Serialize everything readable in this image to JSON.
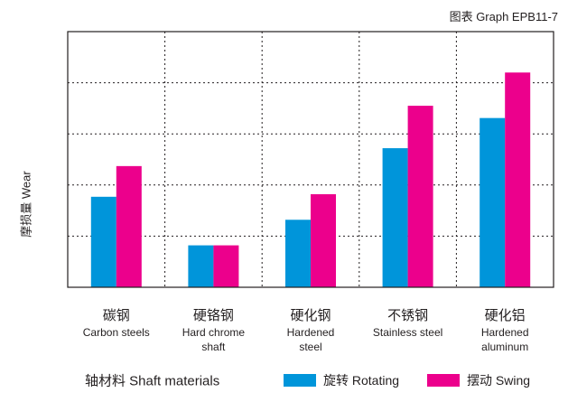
{
  "chart_data": {
    "type": "bar",
    "title": "图表 Graph EPB11-7",
    "ylabel": "摩损量 Wear",
    "xlabel": "轴材料 Shaft materials",
    "categories": [
      {
        "zh": "碳钢",
        "en": [
          "Carbon steels"
        ]
      },
      {
        "zh": "硬铬钢",
        "en": [
          "Hard chrome",
          "shaft"
        ]
      },
      {
        "zh": "硬化钢",
        "en": [
          "Hardened",
          "steel"
        ]
      },
      {
        "zh": "不锈钢",
        "en": [
          "Stainless steel"
        ]
      },
      {
        "zh": "硬化铝",
        "en": [
          "Hardened",
          "aluminum"
        ]
      }
    ],
    "series": [
      {
        "name": "旋转 Rotating",
        "color": "#0095da",
        "values": [
          1.77,
          0.82,
          1.32,
          2.72,
          3.31
        ]
      },
      {
        "name": "摆动 Swing",
        "color": "#ec008c",
        "values": [
          2.37,
          0.82,
          1.82,
          3.55,
          4.2
        ]
      }
    ],
    "ylim": [
      0,
      5
    ],
    "grid": true,
    "legend_position": "bottom"
  }
}
